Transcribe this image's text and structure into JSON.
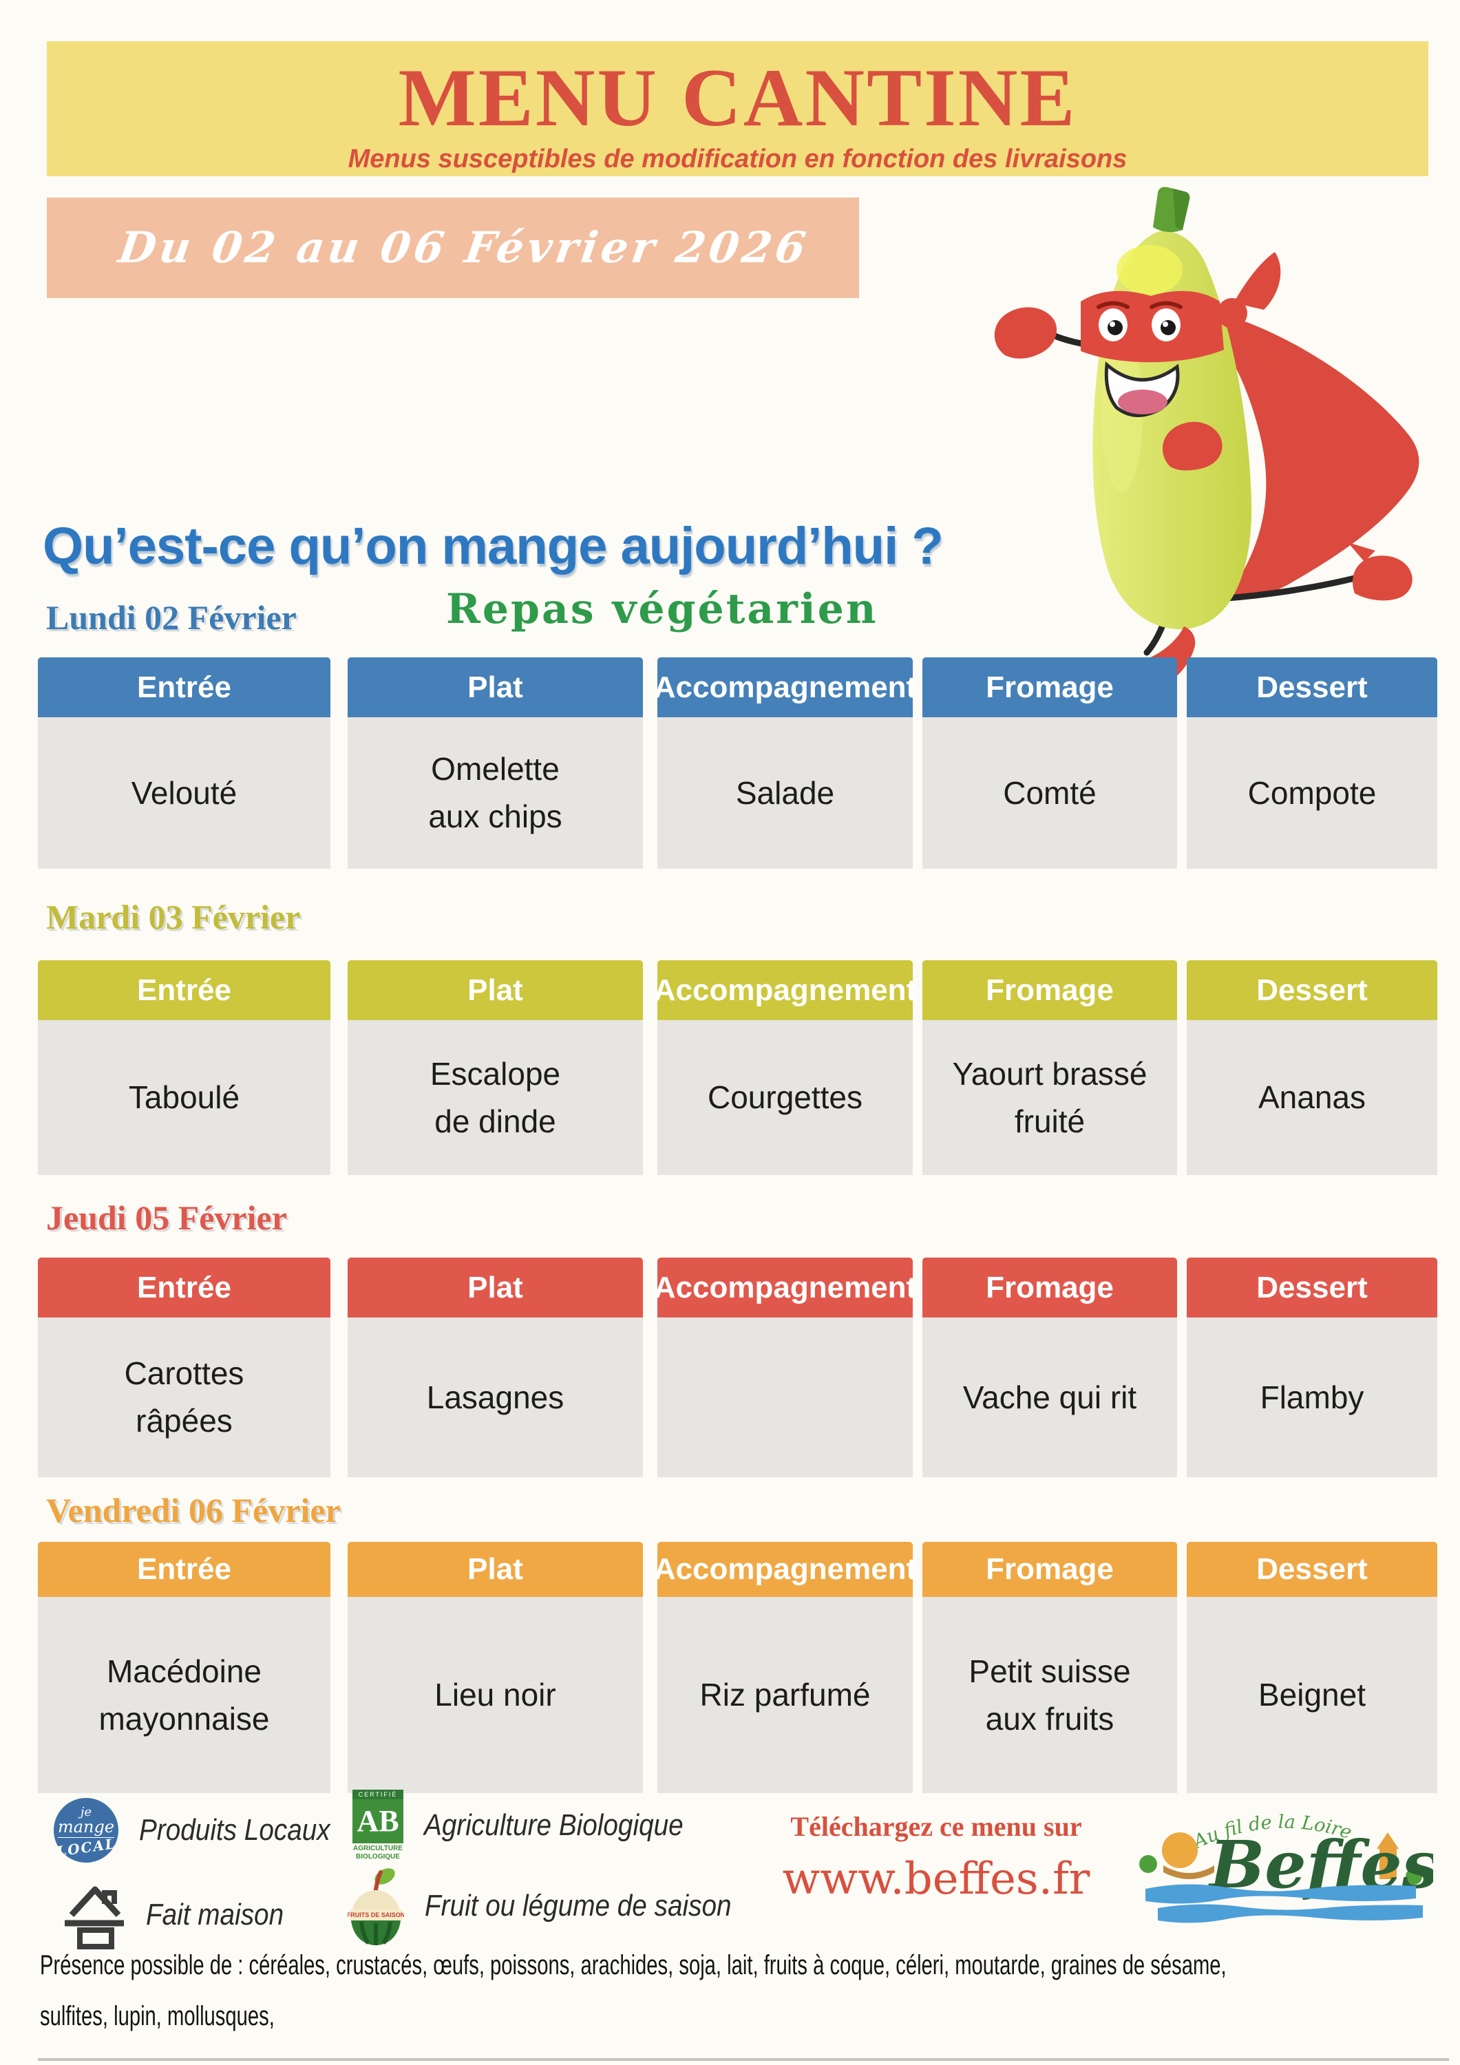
{
  "document": {
    "type": "scanned-school-canteen-menu"
  },
  "colors": {
    "banner_yellow": "#F3DE7D",
    "accent_red": "#D8503F",
    "banner_salmon": "#F2BFA0",
    "heading_blue": "#2E78C2",
    "vegetarian_green": "#2E9B4B",
    "cell_gray": "#E7E5E1",
    "lundi_blue": "#4580B8",
    "mardi_green": "#CCC73D",
    "jeudi_red": "#E0584C",
    "vendredi_orange": "#F0A845",
    "beffes_green": "#2C6137",
    "beffes_blue": "#4D9FD8"
  },
  "header": {
    "title": "MENU CANTINE",
    "subtitle": "Menus susceptibles de modification en fonction des livraisons",
    "week": "Du 02 au 06 Février 2026"
  },
  "question": "Qu’est-ce qu’on mange aujourd’hui ?",
  "vegetarian_note": "Repas végétarien",
  "columns": [
    "Entrée",
    "Plat",
    "Accompagnement",
    "Fromage",
    "Dessert"
  ],
  "days": [
    {
      "label": "Lundi 02 Février",
      "items": [
        [
          "Velouté"
        ],
        [
          "Omelette",
          "aux chips"
        ],
        [
          "Salade"
        ],
        [
          "Comté"
        ],
        [
          "Compote"
        ]
      ]
    },
    {
      "label": "Mardi 03 Février",
      "items": [
        [
          "Taboulé"
        ],
        [
          "Escalope",
          "de dinde"
        ],
        [
          "Courgettes"
        ],
        [
          "Yaourt brassé",
          "fruité"
        ],
        [
          "Ananas"
        ]
      ]
    },
    {
      "label": "Jeudi 05 Février",
      "items": [
        [
          "Carottes",
          "râpées"
        ],
        [
          "Lasagnes"
        ],
        [],
        [
          "Vache qui rit"
        ],
        [
          "Flamby"
        ]
      ]
    },
    {
      "label": "Vendredi 06 Février",
      "items": [
        [
          "Macédoine",
          "mayonnaise"
        ],
        [
          "Lieu noir"
        ],
        [
          "Riz parfumé"
        ],
        [
          "Petit suisse",
          "aux fruits"
        ],
        [
          "Beignet"
        ]
      ]
    }
  ],
  "legend": {
    "produits_locaux": {
      "label": "Produits Locaux",
      "badge_lines": [
        "je",
        "mange",
        "LOCAL"
      ]
    },
    "agriculture_bio": {
      "label": "Agriculture Biologique",
      "badge_top": "CERTIFIÉ",
      "badge_main": "AB",
      "badge_sub_1": "AGRICULTURE",
      "badge_sub_2": "BIOLOGIQUE"
    },
    "fait_maison": {
      "label": "Fait maison"
    },
    "fruit_saison": {
      "label": "Fruit ou légume de saison",
      "badge_band": "FRUITS DE SAISON"
    }
  },
  "download": {
    "intro": "Téléchargez ce menu sur",
    "url": "www.beffes.fr"
  },
  "beffes_logo": {
    "tagline": "Au fil de la Loire",
    "name": "Beffes"
  },
  "allergens": [
    "Présence possible de  : céréales, crustacés, œufs, poissons, arachides, soja, lait, fruits à coque, céleri,  moutarde,  graines de sésame,",
    "sulfites, lupin, mollusques,"
  ]
}
